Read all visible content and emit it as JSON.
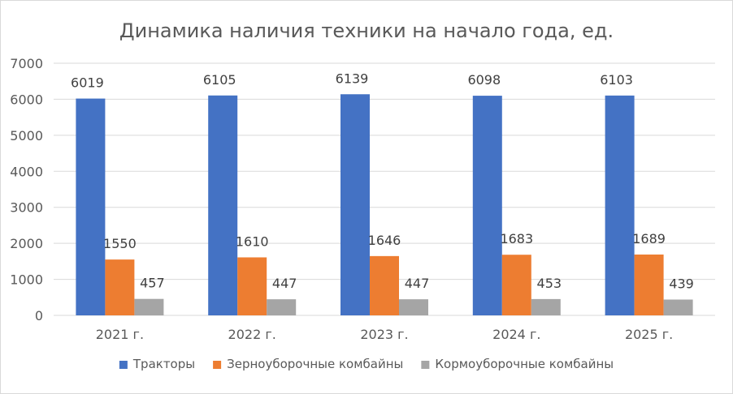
{
  "chart_data": {
    "type": "bar",
    "title": "Динамика наличия техники на начало года, ед.",
    "xlabel": "",
    "ylabel": "",
    "categories": [
      "2021 г.",
      "2022 г.",
      "2023 г.",
      "2024 г.",
      "2025 г."
    ],
    "series": [
      {
        "name": "Тракторы",
        "color": "#4472c4",
        "values": [
          6019,
          6105,
          6139,
          6098,
          6103
        ]
      },
      {
        "name": "Зерноуборочные комбайны",
        "color": "#ed7d31",
        "values": [
          1550,
          1610,
          1646,
          1683,
          1689
        ]
      },
      {
        "name": "Кормоуборочные комбайны",
        "color": "#a5a5a5",
        "values": [
          457,
          447,
          447,
          453,
          439
        ]
      }
    ],
    "ylim": [
      0,
      7000
    ],
    "yticks": [
      0,
      1000,
      2000,
      3000,
      4000,
      5000,
      6000,
      7000
    ],
    "grid": true,
    "legend_position": "bottom",
    "data_labels": true
  }
}
